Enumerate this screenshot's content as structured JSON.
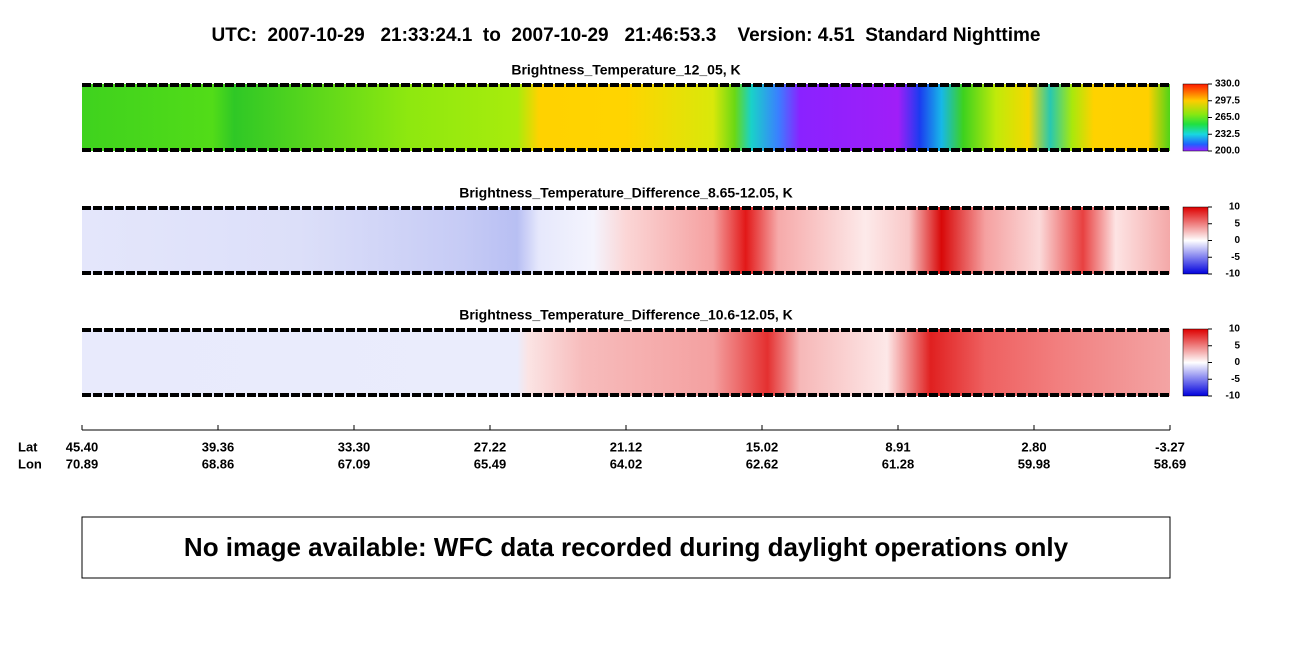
{
  "header": {
    "title": "UTC:  2007-10-29   21:33:24.1  to  2007-10-29   21:46:53.3    Version: 4.51  Standard Nighttime"
  },
  "panels": [
    {
      "title": "Brightness_Temperature_12_05, K",
      "colorbar_labels": [
        "330.0",
        "297.5",
        "265.0",
        "232.5",
        "200.0"
      ]
    },
    {
      "title": "Brightness_Temperature_Difference_8.65-12.05, K",
      "colorbar_labels": [
        "10",
        "5",
        "0",
        "-5",
        "-10"
      ]
    },
    {
      "title": "Brightness_Temperature_Difference_10.6-12.05, K",
      "colorbar_labels": [
        "10",
        "5",
        "0",
        "-5",
        "-10"
      ]
    }
  ],
  "axis": {
    "lat_label": "Lat",
    "lon_label": "Lon",
    "lat": [
      "45.40",
      "39.36",
      "33.30",
      "27.22",
      "21.12",
      "15.02",
      "8.91",
      "2.80",
      "-3.27"
    ],
    "lon": [
      "70.89",
      "68.86",
      "67.09",
      "65.49",
      "64.02",
      "62.62",
      "61.28",
      "59.98",
      "58.69"
    ]
  },
  "message": "No image available: WFC data recorded during daylight operations only"
}
